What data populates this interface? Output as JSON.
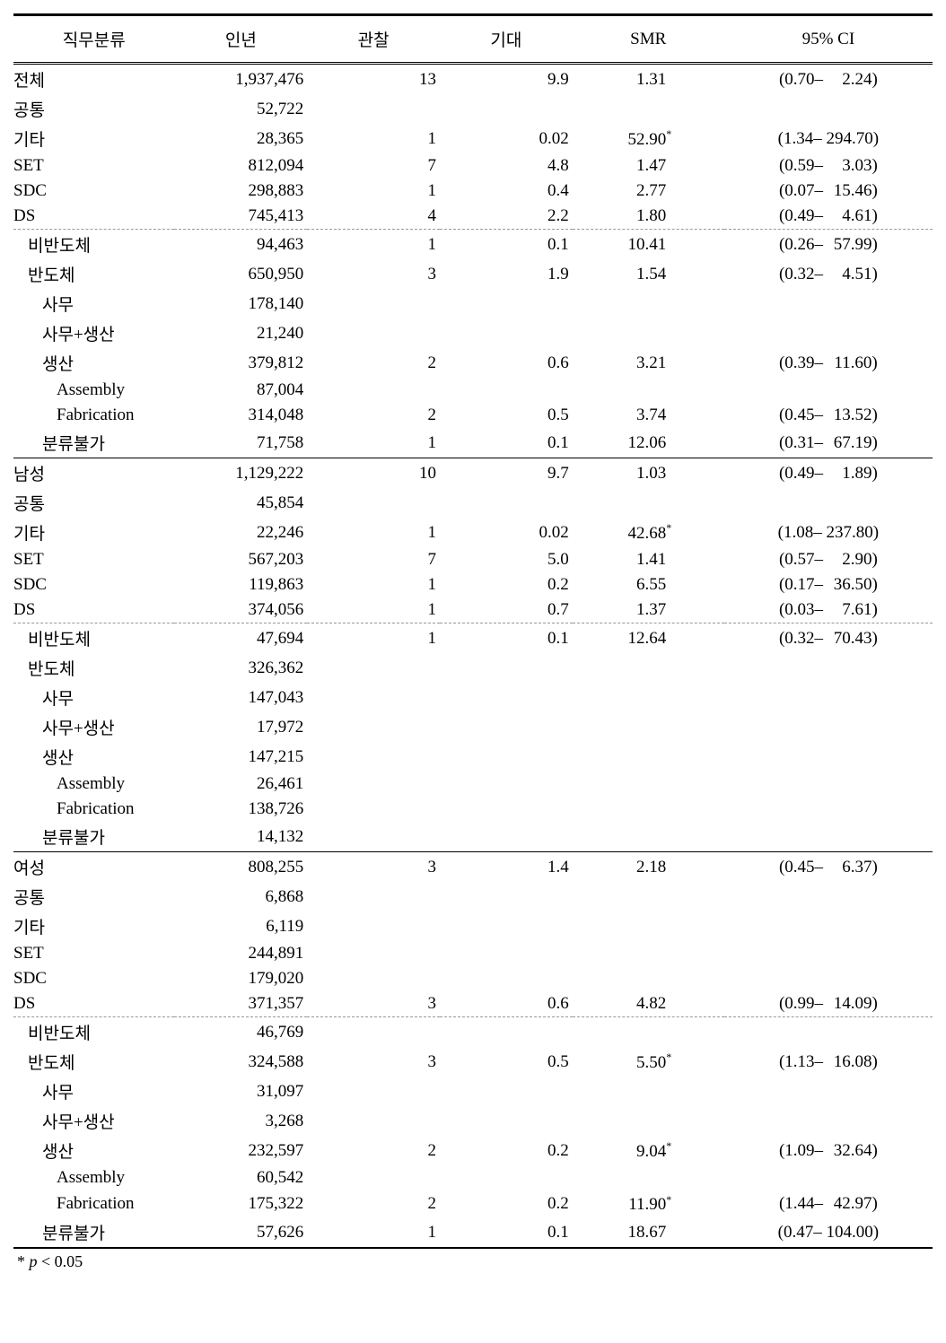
{
  "table": {
    "headers": [
      "직무분류",
      "인년",
      "관찰",
      "기대",
      "SMR",
      "95% CI"
    ],
    "footnote_star": "*",
    "footnote_p": "p",
    "footnote_text": " < 0.05",
    "rows": [
      {
        "label": "전체",
        "indent": 0,
        "iny": "1,937,476",
        "obs": "13",
        "exp": "9.9",
        "smr": "1.31",
        "star": "",
        "ci_l": "(0.70–",
        "ci_r": "2.24)",
        "border": "none"
      },
      {
        "label": "공통",
        "indent": 0,
        "iny": "52,722",
        "obs": "",
        "exp": "",
        "smr": "",
        "star": "",
        "ci_l": "",
        "ci_r": "",
        "border": "none"
      },
      {
        "label": "기타",
        "indent": 0,
        "iny": "28,365",
        "obs": "1",
        "exp": "0.02",
        "smr": "52.90",
        "star": "*",
        "ci_l": "(1.34–",
        "ci_r": "294.70)",
        "border": "none"
      },
      {
        "label": "SET",
        "indent": 0,
        "iny": "812,094",
        "obs": "7",
        "exp": "4.8",
        "smr": "1.47",
        "star": "",
        "ci_l": "(0.59–",
        "ci_r": "3.03)",
        "border": "none"
      },
      {
        "label": "SDC",
        "indent": 0,
        "iny": "298,883",
        "obs": "1",
        "exp": "0.4",
        "smr": "2.77",
        "star": "",
        "ci_l": "(0.07–",
        "ci_r": "15.46)",
        "border": "none"
      },
      {
        "label": "DS",
        "indent": 0,
        "iny": "745,413",
        "obs": "4",
        "exp": "2.2",
        "smr": "1.80",
        "star": "",
        "ci_l": "(0.49–",
        "ci_r": "4.61)",
        "border": "dashed"
      },
      {
        "label": "비반도체",
        "indent": 1,
        "iny": "94,463",
        "obs": "1",
        "exp": "0.1",
        "smr": "10.41",
        "star": "",
        "ci_l": "(0.26–",
        "ci_r": "57.99)",
        "border": "none"
      },
      {
        "label": "반도체",
        "indent": 1,
        "iny": "650,950",
        "obs": "3",
        "exp": "1.9",
        "smr": "1.54",
        "star": "",
        "ci_l": "(0.32–",
        "ci_r": "4.51)",
        "border": "none"
      },
      {
        "label": "사무",
        "indent": 2,
        "iny": "178,140",
        "obs": "",
        "exp": "",
        "smr": "",
        "star": "",
        "ci_l": "",
        "ci_r": "",
        "border": "none"
      },
      {
        "label": "사무+생산",
        "indent": 2,
        "iny": "21,240",
        "obs": "",
        "exp": "",
        "smr": "",
        "star": "",
        "ci_l": "",
        "ci_r": "",
        "border": "none"
      },
      {
        "label": "생산",
        "indent": 2,
        "iny": "379,812",
        "obs": "2",
        "exp": "0.6",
        "smr": "3.21",
        "star": "",
        "ci_l": "(0.39–",
        "ci_r": "11.60)",
        "border": "none"
      },
      {
        "label": "Assembly",
        "indent": 3,
        "iny": "87,004",
        "obs": "",
        "exp": "",
        "smr": "",
        "star": "",
        "ci_l": "",
        "ci_r": "",
        "border": "none"
      },
      {
        "label": "Fabrication",
        "indent": 3,
        "iny": "314,048",
        "obs": "2",
        "exp": "0.5",
        "smr": "3.74",
        "star": "",
        "ci_l": "(0.45–",
        "ci_r": "13.52)",
        "border": "none"
      },
      {
        "label": "분류불가",
        "indent": 2,
        "iny": "71,758",
        "obs": "1",
        "exp": "0.1",
        "smr": "12.06",
        "star": "",
        "ci_l": "(0.31–",
        "ci_r": "67.19)",
        "border": "solid"
      },
      {
        "label": "남성",
        "indent": 0,
        "iny": "1,129,222",
        "obs": "10",
        "exp": "9.7",
        "smr": "1.03",
        "star": "",
        "ci_l": "(0.49–",
        "ci_r": "1.89)",
        "border": "none"
      },
      {
        "label": "공통",
        "indent": 0,
        "iny": "45,854",
        "obs": "",
        "exp": "",
        "smr": "",
        "star": "",
        "ci_l": "",
        "ci_r": "",
        "border": "none"
      },
      {
        "label": "기타",
        "indent": 0,
        "iny": "22,246",
        "obs": "1",
        "exp": "0.02",
        "smr": "42.68",
        "star": "*",
        "ci_l": "(1.08–",
        "ci_r": "237.80)",
        "border": "none"
      },
      {
        "label": "SET",
        "indent": 0,
        "iny": "567,203",
        "obs": "7",
        "exp": "5.0",
        "smr": "1.41",
        "star": "",
        "ci_l": "(0.57–",
        "ci_r": "2.90)",
        "border": "none"
      },
      {
        "label": "SDC",
        "indent": 0,
        "iny": "119,863",
        "obs": "1",
        "exp": "0.2",
        "smr": "6.55",
        "star": "",
        "ci_l": "(0.17–",
        "ci_r": "36.50)",
        "border": "none"
      },
      {
        "label": "DS",
        "indent": 0,
        "iny": "374,056",
        "obs": "1",
        "exp": "0.7",
        "smr": "1.37",
        "star": "",
        "ci_l": "(0.03–",
        "ci_r": "7.61)",
        "border": "dashed"
      },
      {
        "label": "비반도체",
        "indent": 1,
        "iny": "47,694",
        "obs": "1",
        "exp": "0.1",
        "smr": "12.64",
        "star": "",
        "ci_l": "(0.32–",
        "ci_r": "70.43)",
        "border": "none"
      },
      {
        "label": "반도체",
        "indent": 1,
        "iny": "326,362",
        "obs": "",
        "exp": "",
        "smr": "",
        "star": "",
        "ci_l": "",
        "ci_r": "",
        "border": "none"
      },
      {
        "label": "사무",
        "indent": 2,
        "iny": "147,043",
        "obs": "",
        "exp": "",
        "smr": "",
        "star": "",
        "ci_l": "",
        "ci_r": "",
        "border": "none"
      },
      {
        "label": "사무+생산",
        "indent": 2,
        "iny": "17,972",
        "obs": "",
        "exp": "",
        "smr": "",
        "star": "",
        "ci_l": "",
        "ci_r": "",
        "border": "none"
      },
      {
        "label": "생산",
        "indent": 2,
        "iny": "147,215",
        "obs": "",
        "exp": "",
        "smr": "",
        "star": "",
        "ci_l": "",
        "ci_r": "",
        "border": "none"
      },
      {
        "label": "Assembly",
        "indent": 3,
        "iny": "26,461",
        "obs": "",
        "exp": "",
        "smr": "",
        "star": "",
        "ci_l": "",
        "ci_r": "",
        "border": "none"
      },
      {
        "label": "Fabrication",
        "indent": 3,
        "iny": "138,726",
        "obs": "",
        "exp": "",
        "smr": "",
        "star": "",
        "ci_l": "",
        "ci_r": "",
        "border": "none"
      },
      {
        "label": "분류불가",
        "indent": 2,
        "iny": "14,132",
        "obs": "",
        "exp": "",
        "smr": "",
        "star": "",
        "ci_l": "",
        "ci_r": "",
        "border": "solid"
      },
      {
        "label": "여성",
        "indent": 0,
        "iny": "808,255",
        "obs": "3",
        "exp": "1.4",
        "smr": "2.18",
        "star": "",
        "ci_l": "(0.45–",
        "ci_r": "6.37)",
        "border": "none"
      },
      {
        "label": "공통",
        "indent": 0,
        "iny": "6,868",
        "obs": "",
        "exp": "",
        "smr": "",
        "star": "",
        "ci_l": "",
        "ci_r": "",
        "border": "none"
      },
      {
        "label": "기타",
        "indent": 0,
        "iny": "6,119",
        "obs": "",
        "exp": "",
        "smr": "",
        "star": "",
        "ci_l": "",
        "ci_r": "",
        "border": "none"
      },
      {
        "label": "SET",
        "indent": 0,
        "iny": "244,891",
        "obs": "",
        "exp": "",
        "smr": "",
        "star": "",
        "ci_l": "",
        "ci_r": "",
        "border": "none"
      },
      {
        "label": "SDC",
        "indent": 0,
        "iny": "179,020",
        "obs": "",
        "exp": "",
        "smr": "",
        "star": "",
        "ci_l": "",
        "ci_r": "",
        "border": "none"
      },
      {
        "label": "DS",
        "indent": 0,
        "iny": "371,357",
        "obs": "3",
        "exp": "0.6",
        "smr": "4.82",
        "star": "",
        "ci_l": "(0.99–",
        "ci_r": "14.09)",
        "border": "dashed"
      },
      {
        "label": "비반도체",
        "indent": 1,
        "iny": "46,769",
        "obs": "",
        "exp": "",
        "smr": "",
        "star": "",
        "ci_l": "",
        "ci_r": "",
        "border": "none"
      },
      {
        "label": "반도체",
        "indent": 1,
        "iny": "324,588",
        "obs": "3",
        "exp": "0.5",
        "smr": "5.50",
        "star": "*",
        "ci_l": "(1.13–",
        "ci_r": "16.08)",
        "border": "none"
      },
      {
        "label": "사무",
        "indent": 2,
        "iny": "31,097",
        "obs": "",
        "exp": "",
        "smr": "",
        "star": "",
        "ci_l": "",
        "ci_r": "",
        "border": "none"
      },
      {
        "label": "사무+생산",
        "indent": 2,
        "iny": "3,268",
        "obs": "",
        "exp": "",
        "smr": "",
        "star": "",
        "ci_l": "",
        "ci_r": "",
        "border": "none"
      },
      {
        "label": "생산",
        "indent": 2,
        "iny": "232,597",
        "obs": "2",
        "exp": "0.2",
        "smr": "9.04",
        "star": "*",
        "ci_l": "(1.09–",
        "ci_r": "32.64)",
        "border": "none"
      },
      {
        "label": "Assembly",
        "indent": 3,
        "iny": "60,542",
        "obs": "",
        "exp": "",
        "smr": "",
        "star": "",
        "ci_l": "",
        "ci_r": "",
        "border": "none"
      },
      {
        "label": "Fabrication",
        "indent": 3,
        "iny": "175,322",
        "obs": "2",
        "exp": "0.2",
        "smr": "11.90",
        "star": "*",
        "ci_l": "(1.44–",
        "ci_r": "42.97)",
        "border": "none"
      },
      {
        "label": "분류불가",
        "indent": 2,
        "iny": "57,626",
        "obs": "1",
        "exp": "0.1",
        "smr": "18.67",
        "star": "",
        "ci_l": "(0.47–",
        "ci_r": "104.00)",
        "border": "thick"
      }
    ]
  }
}
